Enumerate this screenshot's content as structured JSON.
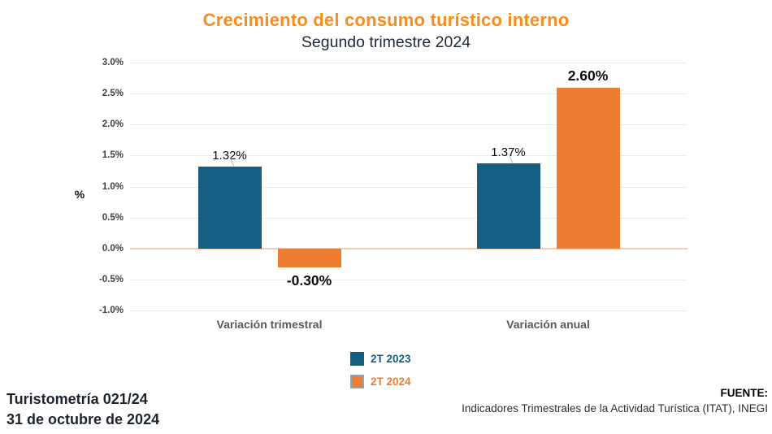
{
  "header": {
    "title": "Crecimiento del consumo turístico interno",
    "subtitle": "Segundo trimestre 2024",
    "title_color": "#F98C1B",
    "subtitle_color": "#1F2933"
  },
  "chart_data": {
    "type": "bar",
    "categories": [
      "Variación trimestral",
      "Variación anual"
    ],
    "series": [
      {
        "name": "2T 2023",
        "color": "#155E83",
        "values": [
          1.32,
          1.37
        ],
        "labels": [
          "1.32%",
          "1.37%"
        ],
        "label_style": "regular",
        "leader_line": true
      },
      {
        "name": "2T 2024",
        "color": "#ED7D31",
        "values": [
          -0.3,
          2.6
        ],
        "labels": [
          "-0.30%",
          "2.60%"
        ],
        "label_style": "bold",
        "leader_line": false
      }
    ],
    "ylabel": "%",
    "ylim": [
      -1.0,
      3.0
    ],
    "yticks": [
      3.0,
      2.5,
      2.0,
      1.5,
      1.0,
      0.5,
      0.0,
      -0.5,
      -1.0
    ],
    "ytick_labels": [
      "3.0%",
      "2.5%",
      "2.0%",
      "1.5%",
      "1.0%",
      "0.5%",
      "0.0%",
      "-0.5%",
      "-1.0%"
    ],
    "grid": true,
    "gridline_color": "#EAEAEA",
    "zero_line_color": "#F8CBAD",
    "legend_position": "bottom-center"
  },
  "legend": {
    "items": [
      {
        "label": "2T 2023",
        "color": "#155E83",
        "border": ""
      },
      {
        "label": "2T 2024",
        "color": "#ED7D31",
        "border": "#93A2B4"
      }
    ]
  },
  "footer": {
    "left_line1": "Turistometría 021/24",
    "left_line2": "31 de octubre de 2024",
    "source_label": "FUENTE:",
    "source_text": "Indicadores Trimestrales de la Actividad Turística (ITAT), INEGI"
  }
}
